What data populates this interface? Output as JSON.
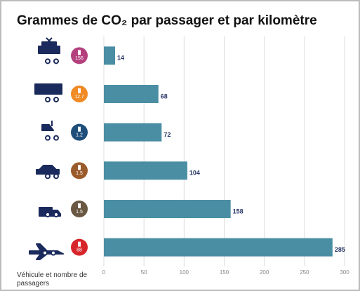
{
  "chart_data": {
    "type": "bar",
    "orientation": "horizontal",
    "title": "Grammes de CO₂ par passager et par kilomètre",
    "values": [
      14,
      68,
      72,
      104,
      158,
      285
    ],
    "passengers": [
      156,
      12.7,
      1.2,
      1.5,
      1.5,
      88
    ],
    "passenger_colors": [
      "#b4407e",
      "#f08a24",
      "#1f4e7a",
      "#9a5b2b",
      "#6a5843",
      "#d7262b"
    ],
    "color": "#4a8ea3",
    "xlim": [
      0,
      300
    ],
    "xticks": [
      0,
      50,
      100,
      150,
      200,
      250,
      300
    ],
    "grid": true,
    "axis_note": "Véhicule et nombre de passagers"
  }
}
